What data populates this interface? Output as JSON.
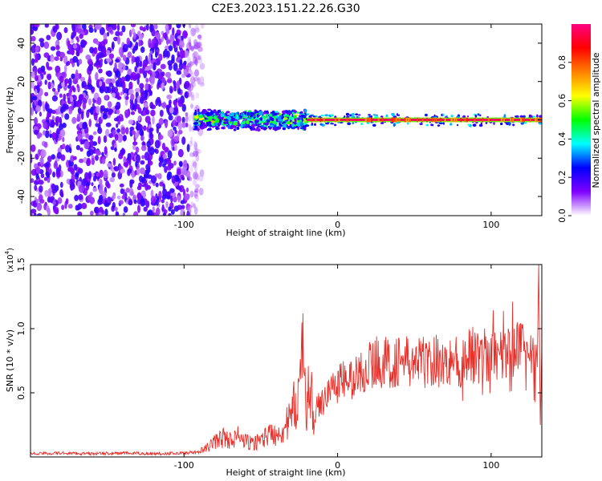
{
  "title": "C2E3.2023.151.22.26.G30",
  "chart_data": [
    {
      "type": "heatmap",
      "xlabel": "Height of straight line (km)",
      "ylabel": "Frequency (Hz)",
      "xlim": [
        -200,
        133
      ],
      "ylim": [
        -50,
        50
      ],
      "xticks": [
        -100,
        0,
        100
      ],
      "xtick_labels": [
        "-100",
        "0",
        "100"
      ],
      "yticks": [
        -40,
        -20,
        0,
        20,
        40
      ],
      "ytick_labels": [
        "-40",
        "-20",
        "0",
        "20",
        "40"
      ],
      "grid": false,
      "colorbar": {
        "label": "Normalized spectral amplitude",
        "range": [
          0,
          1
        ],
        "ticks": [
          0.0,
          0.2,
          0.4,
          0.6,
          0.8
        ],
        "tick_labels": [
          "0.0",
          "0.2",
          "0.4",
          "0.6",
          "0.8"
        ],
        "colormap": [
          "#ffffff",
          "#8000ff",
          "#0000ff",
          "#00ffff",
          "#00ff00",
          "#ffff00",
          "#ff8000",
          "#ff0000",
          "#ff0080"
        ]
      },
      "regions": [
        {
          "x_range": [
            -200,
            -88
          ],
          "freq_range": [
            -50,
            50
          ],
          "amplitude": "low (0.05-0.2), broadband noise"
        },
        {
          "x_range": [
            -93,
            -20
          ],
          "freq_range": [
            -6,
            6
          ],
          "amplitude": "0.2-0.7, centered near 0 Hz"
        },
        {
          "x_range": [
            -20,
            133
          ],
          "freq_range": [
            -1,
            1
          ],
          "amplitude": "0.9-1.0, line at 0 Hz"
        }
      ]
    },
    {
      "type": "line",
      "xlabel": "Height of straight line (km)",
      "ylabel": "SNR (10 * v/v)",
      "scale_label": "(x10",
      "scale_exp": "4",
      "scale_close": ")",
      "xlim": [
        -200,
        133
      ],
      "ylim": [
        0.0,
        1.5
      ],
      "xticks": [
        -100,
        0,
        100
      ],
      "xtick_labels": [
        "-100",
        "0",
        "100"
      ],
      "yticks": [
        0.5,
        1.0,
        1.5
      ],
      "ytick_labels": [
        "0.5",
        "1.0",
        "1.5"
      ],
      "grid": false,
      "series": [
        {
          "color": "#e8302a",
          "x": [
            -200,
            -180,
            -160,
            -140,
            -120,
            -100,
            -90,
            -85,
            -80,
            -75,
            -70,
            -65,
            -60,
            -55,
            -50,
            -45,
            -40,
            -35,
            -30,
            -28,
            -25,
            -22,
            -20,
            -18,
            -15,
            -12,
            -10,
            -8,
            -5,
            -2,
            0,
            5,
            10,
            15,
            20,
            25,
            30,
            35,
            40,
            45,
            50,
            55,
            60,
            65,
            70,
            75,
            80,
            85,
            90,
            95,
            100,
            105,
            110,
            115,
            120,
            125,
            130,
            131,
            132,
            133
          ],
          "y": [
            0.025,
            0.03,
            0.025,
            0.03,
            0.025,
            0.03,
            0.04,
            0.07,
            0.12,
            0.15,
            0.13,
            0.16,
            0.12,
            0.1,
            0.14,
            0.17,
            0.19,
            0.22,
            0.3,
            0.4,
            0.55,
            0.75,
            0.5,
            0.45,
            0.35,
            0.4,
            0.42,
            0.5,
            0.52,
            0.55,
            0.58,
            0.6,
            0.6,
            0.66,
            0.7,
            0.75,
            0.74,
            0.72,
            0.76,
            0.74,
            0.72,
            0.75,
            0.73,
            0.76,
            0.72,
            0.78,
            0.72,
            0.78,
            0.8,
            0.78,
            0.8,
            0.76,
            0.8,
            0.82,
            0.84,
            0.8,
            0.7,
            1.5,
            0.25,
            0.85
          ]
        }
      ]
    }
  ]
}
